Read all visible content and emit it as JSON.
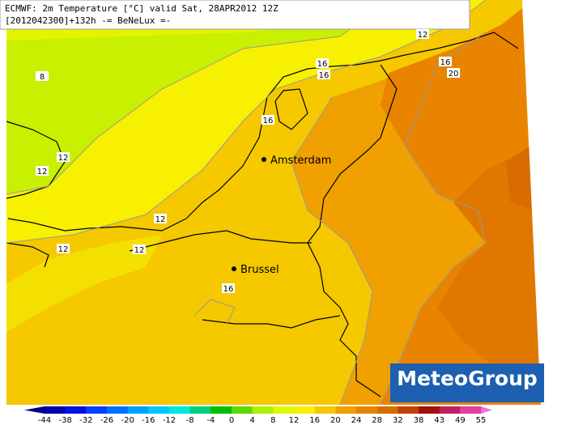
{
  "header": {
    "line1": "ECMWF: 2m Temperature [°C] valid Sat, 28APR2012 12Z",
    "line2": "[2012042300]+132h -= BeNeLux =-"
  },
  "cities": [
    {
      "label": "Amsterdam"
    },
    {
      "label": "Brussel"
    }
  ],
  "contour_labels": [
    "8",
    "12",
    "12",
    "12",
    "12",
    "12",
    "16",
    "16",
    "16",
    "12",
    "16",
    "20",
    "16"
  ],
  "logo": "MeteoGroup",
  "legend": {
    "ticks": [
      "-44",
      "-38",
      "-32",
      "-26",
      "-20",
      "-16",
      "-12",
      "-8",
      "-4",
      "0",
      "4",
      "8",
      "12",
      "16",
      "20",
      "24",
      "28",
      "32",
      "38",
      "43",
      "49",
      "55"
    ]
  }
}
